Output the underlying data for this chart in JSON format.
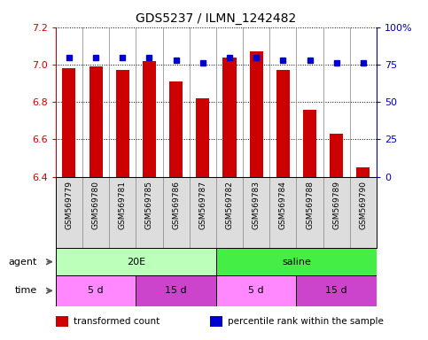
{
  "title": "GDS5237 / ILMN_1242482",
  "samples": [
    "GSM569779",
    "GSM569780",
    "GSM569781",
    "GSM569785",
    "GSM569786",
    "GSM569787",
    "GSM569782",
    "GSM569783",
    "GSM569784",
    "GSM569788",
    "GSM569789",
    "GSM569790"
  ],
  "transformed_counts": [
    6.98,
    6.99,
    6.97,
    7.02,
    6.91,
    6.82,
    7.04,
    7.07,
    6.97,
    6.76,
    6.63,
    6.45
  ],
  "percentile_ranks": [
    80,
    80,
    80,
    80,
    78,
    76,
    80,
    80,
    78,
    78,
    76,
    76
  ],
  "ylim_left": [
    6.4,
    7.2
  ],
  "ylim_right": [
    0,
    100
  ],
  "yticks_left": [
    6.4,
    6.6,
    6.8,
    7.0,
    7.2
  ],
  "yticks_right": [
    0,
    25,
    50,
    75,
    100
  ],
  "bar_color": "#cc0000",
  "dot_color": "#0000cc",
  "bar_bottom": 6.4,
  "agent_groups": [
    {
      "label": "20E",
      "start": 0,
      "end": 6,
      "color": "#bbffbb"
    },
    {
      "label": "saline",
      "start": 6,
      "end": 12,
      "color": "#44ee44"
    }
  ],
  "time_groups": [
    {
      "label": "5 d",
      "start": 0,
      "end": 3,
      "color": "#ff88ff"
    },
    {
      "label": "15 d",
      "start": 3,
      "end": 6,
      "color": "#cc44cc"
    },
    {
      "label": "5 d",
      "start": 6,
      "end": 9,
      "color": "#ff88ff"
    },
    {
      "label": "15 d",
      "start": 9,
      "end": 12,
      "color": "#cc44cc"
    }
  ],
  "legend_items": [
    {
      "label": "transformed count",
      "color": "#cc0000"
    },
    {
      "label": "percentile rank within the sample",
      "color": "#0000cc"
    }
  ],
  "sample_bg_color": "#dddddd",
  "fig_width": 4.83,
  "fig_height": 3.84,
  "dpi": 100
}
